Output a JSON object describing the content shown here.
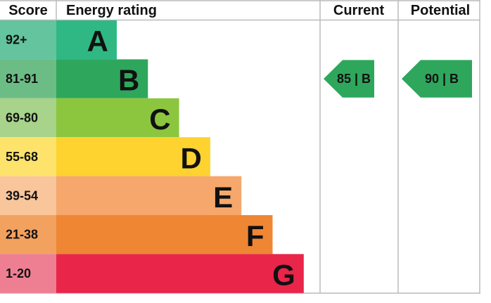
{
  "header": {
    "score": "Score",
    "rating": "Energy rating",
    "current": "Current",
    "potential": "Potential"
  },
  "bands": [
    {
      "score": "92+",
      "letter": "A"
    },
    {
      "score": "81-91",
      "letter": "B"
    },
    {
      "score": "69-80",
      "letter": "C"
    },
    {
      "score": "55-68",
      "letter": "D"
    },
    {
      "score": "39-54",
      "letter": "E"
    },
    {
      "score": "21-38",
      "letter": "F"
    },
    {
      "score": "1-20",
      "letter": "G"
    }
  ],
  "current": {
    "label": "85 | B"
  },
  "potential": {
    "label": "90 | B"
  }
}
